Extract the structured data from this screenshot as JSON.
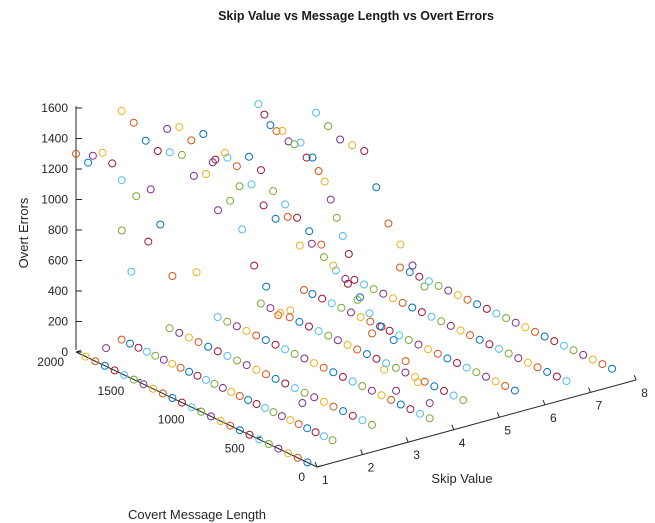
{
  "chart_data": {
    "type": "scatter3d",
    "title": "Skip Value vs Message Length vs Overt Errors",
    "xlabel": "Skip Value",
    "ylabel": "Covert Message Length",
    "zlabel": "Overt Errors",
    "xlim": [
      1,
      8
    ],
    "ylim": [
      0,
      2000
    ],
    "zlim": [
      0,
      1600
    ],
    "xticks": [
      "1",
      "2",
      "3",
      "4",
      "5",
      "6",
      "7",
      "8"
    ],
    "yticks": [
      "0",
      "500",
      "1000",
      "1500",
      "2000"
    ],
    "zticks": [
      "0",
      "200",
      "400",
      "600",
      "800",
      "1000",
      "1200",
      "1400",
      "1600"
    ],
    "grid": false,
    "marker": "open-circle",
    "colors": [
      "#0072BD",
      "#D95319",
      "#EDB120",
      "#7E2F8E",
      "#77AC30",
      "#4DBEEE",
      "#A2142F"
    ],
    "note": "estimated from the figure",
    "series": [
      {
        "skip_value": 1,
        "points": [
          [
            80,
            0
          ],
          [
            160,
            0
          ],
          [
            240,
            0
          ],
          [
            320,
            0
          ],
          [
            400,
            0
          ],
          [
            480,
            0
          ],
          [
            560,
            0
          ],
          [
            640,
            0
          ],
          [
            720,
            0
          ],
          [
            800,
            0
          ],
          [
            880,
            0
          ],
          [
            960,
            0
          ],
          [
            1040,
            0
          ],
          [
            1120,
            0
          ],
          [
            1200,
            0
          ],
          [
            1280,
            0
          ],
          [
            1360,
            0
          ],
          [
            1440,
            0
          ],
          [
            1520,
            0
          ],
          [
            1600,
            0
          ],
          [
            1680,
            0
          ],
          [
            1760,
            0
          ],
          [
            1840,
            0
          ],
          [
            1920,
            0
          ],
          [
            1380,
            1300
          ],
          [
            1500,
            1210
          ],
          [
            1620,
            1270
          ],
          [
            1700,
            1350
          ],
          [
            1900,
            1280
          ],
          [
            2000,
            1300
          ],
          [
            1780,
            1390
          ],
          [
            1860,
            1340
          ],
          [
            1620,
            940
          ],
          [
            1540,
            700
          ],
          [
            1400,
            950
          ],
          [
            1300,
            1100
          ],
          [
            1200,
            800
          ],
          [
            1000,
            900
          ],
          [
            1750,
            120
          ]
        ]
      },
      {
        "skip_value": 2,
        "points": [
          [
            250,
            0
          ],
          [
            320,
            0
          ],
          [
            390,
            0
          ],
          [
            460,
            0
          ],
          [
            530,
            0
          ],
          [
            600,
            0
          ],
          [
            670,
            0
          ],
          [
            740,
            0
          ],
          [
            810,
            0
          ],
          [
            880,
            0
          ],
          [
            950,
            0
          ],
          [
            1020,
            0
          ],
          [
            1090,
            0
          ],
          [
            1160,
            0
          ],
          [
            1230,
            0
          ],
          [
            1300,
            0
          ],
          [
            1370,
            0
          ],
          [
            1440,
            0
          ],
          [
            1510,
            0
          ],
          [
            1580,
            0
          ],
          [
            1650,
            0
          ],
          [
            1720,
            0
          ],
          [
            1790,
            0
          ],
          [
            1860,
            0
          ],
          [
            1930,
            0
          ],
          [
            2000,
            0
          ],
          [
            1300,
            1350
          ],
          [
            1400,
            1300
          ],
          [
            1500,
            1400
          ],
          [
            1600,
            1380
          ],
          [
            1700,
            1350
          ],
          [
            1800,
            1380
          ],
          [
            1900,
            1460
          ],
          [
            2000,
            1500
          ],
          [
            1200,
            1150
          ],
          [
            1100,
            1250
          ],
          [
            1000,
            1100
          ],
          [
            900,
            900
          ],
          [
            800,
            800
          ],
          [
            700,
            650
          ],
          [
            600,
            720
          ],
          [
            500,
            150
          ]
        ]
      },
      {
        "skip_value": 3,
        "points": [
          [
            300,
            0
          ],
          [
            380,
            0
          ],
          [
            460,
            0
          ],
          [
            540,
            0
          ],
          [
            620,
            0
          ],
          [
            700,
            0
          ],
          [
            780,
            0
          ],
          [
            860,
            0
          ],
          [
            940,
            0
          ],
          [
            1020,
            0
          ],
          [
            1100,
            0
          ],
          [
            1180,
            0
          ],
          [
            1260,
            0
          ],
          [
            1340,
            0
          ],
          [
            1420,
            0
          ],
          [
            1500,
            0
          ],
          [
            1580,
            0
          ],
          [
            1660,
            0
          ],
          [
            1740,
            0
          ],
          [
            1820,
            0
          ],
          [
            1900,
            0
          ],
          [
            1980,
            0
          ],
          [
            1500,
            1300
          ],
          [
            1600,
            1250
          ],
          [
            1700,
            1380
          ],
          [
            1800,
            1300
          ],
          [
            1900,
            1350
          ],
          [
            2000,
            1300
          ],
          [
            1400,
            1150
          ],
          [
            1300,
            1200
          ],
          [
            1200,
            1100
          ],
          [
            1100,
            1050
          ],
          [
            1000,
            1100
          ],
          [
            900,
            950
          ],
          [
            800,
            1000
          ],
          [
            700,
            950
          ],
          [
            600,
            900
          ],
          [
            500,
            850
          ],
          [
            400,
            800
          ],
          [
            300,
            600
          ],
          [
            200,
            400
          ],
          [
            100,
            300
          ]
        ]
      },
      {
        "skip_value": 4,
        "points": [
          [
            200,
            0
          ],
          [
            280,
            0
          ],
          [
            360,
            0
          ],
          [
            440,
            0
          ],
          [
            520,
            0
          ],
          [
            600,
            0
          ],
          [
            680,
            0
          ],
          [
            760,
            0
          ],
          [
            840,
            0
          ],
          [
            920,
            0
          ],
          [
            1000,
            0
          ],
          [
            1080,
            0
          ],
          [
            1160,
            0
          ],
          [
            1240,
            0
          ],
          [
            1320,
            0
          ],
          [
            1400,
            0
          ],
          [
            1480,
            0
          ],
          [
            1560,
            0
          ],
          [
            1640,
            0
          ],
          [
            1720,
            0
          ],
          [
            1800,
            0
          ],
          [
            1880,
            0
          ],
          [
            1960,
            0
          ],
          [
            1600,
            1100
          ],
          [
            1700,
            1150
          ],
          [
            1800,
            1050
          ],
          [
            1900,
            1100
          ],
          [
            2000,
            1000
          ],
          [
            1500,
            1000
          ],
          [
            1400,
            950
          ],
          [
            1300,
            900
          ],
          [
            1200,
            850
          ],
          [
            1100,
            800
          ],
          [
            1000,
            700
          ],
          [
            900,
            650
          ],
          [
            800,
            550
          ],
          [
            700,
            500
          ],
          [
            600,
            450
          ],
          [
            500,
            400
          ],
          [
            400,
            300
          ],
          [
            300,
            200
          ],
          [
            200,
            100
          ]
        ]
      },
      {
        "skip_value": 5,
        "points": [
          [
            300,
            0
          ],
          [
            380,
            0
          ],
          [
            460,
            0
          ],
          [
            540,
            0
          ],
          [
            620,
            0
          ],
          [
            700,
            0
          ],
          [
            780,
            0
          ],
          [
            860,
            0
          ],
          [
            940,
            0
          ],
          [
            1020,
            0
          ],
          [
            1100,
            0
          ],
          [
            1180,
            0
          ],
          [
            1260,
            0
          ],
          [
            1340,
            0
          ],
          [
            1420,
            0
          ],
          [
            1500,
            0
          ],
          [
            1580,
            0
          ],
          [
            1660,
            0
          ],
          [
            1740,
            0
          ],
          [
            1820,
            0
          ],
          [
            1900,
            0
          ],
          [
            1980,
            0
          ],
          [
            2000,
            1300
          ],
          [
            1950,
            1250
          ],
          [
            1900,
            1200
          ],
          [
            1850,
            1180
          ],
          [
            1800,
            1200
          ],
          [
            1750,
            1150
          ],
          [
            1700,
            1150
          ],
          [
            1650,
            1180
          ],
          [
            1600,
            1100
          ],
          [
            1550,
            1120
          ],
          [
            1500,
            1050
          ],
          [
            1450,
            1000
          ],
          [
            1400,
            900
          ],
          [
            1350,
            800
          ],
          [
            1300,
            700
          ],
          [
            1250,
            600
          ]
        ]
      },
      {
        "skip_value": 6,
        "points": [
          [
            250,
            0
          ],
          [
            330,
            0
          ],
          [
            410,
            0
          ],
          [
            490,
            0
          ],
          [
            570,
            0
          ],
          [
            650,
            0
          ],
          [
            730,
            0
          ],
          [
            810,
            0
          ],
          [
            890,
            0
          ],
          [
            970,
            0
          ],
          [
            1050,
            0
          ],
          [
            1130,
            0
          ],
          [
            1210,
            0
          ],
          [
            1290,
            0
          ],
          [
            1370,
            0
          ],
          [
            1450,
            0
          ],
          [
            1530,
            0
          ],
          [
            1610,
            0
          ],
          [
            1690,
            0
          ],
          [
            1770,
            0
          ],
          [
            1850,
            0
          ],
          [
            1930,
            0
          ],
          [
            2000,
            0
          ],
          [
            1600,
            1100
          ],
          [
            1700,
            1100
          ],
          [
            1800,
            1150
          ],
          [
            1900,
            1200
          ],
          [
            1500,
            1100
          ],
          [
            1400,
            900
          ],
          [
            1300,
            700
          ],
          [
            1200,
            600
          ],
          [
            1100,
            500
          ],
          [
            1000,
            400
          ]
        ]
      },
      {
        "skip_value": 7,
        "points": [
          [
            200,
            0
          ],
          [
            280,
            0
          ],
          [
            360,
            0
          ],
          [
            440,
            0
          ],
          [
            520,
            0
          ],
          [
            600,
            0
          ],
          [
            680,
            0
          ],
          [
            760,
            0
          ],
          [
            840,
            0
          ],
          [
            920,
            0
          ],
          [
            1000,
            0
          ],
          [
            1080,
            0
          ],
          [
            1160,
            0
          ],
          [
            1240,
            0
          ],
          [
            1320,
            0
          ],
          [
            1400,
            0
          ],
          [
            1480,
            0
          ],
          [
            1560,
            0
          ],
          [
            1640,
            0
          ],
          [
            1720,
            0
          ],
          [
            1800,
            0
          ],
          [
            1880,
            0
          ],
          [
            1960,
            0
          ]
        ]
      },
      {
        "skip_value": 8,
        "points": [
          [
            200,
            0
          ],
          [
            280,
            0
          ],
          [
            360,
            0
          ],
          [
            440,
            0
          ],
          [
            520,
            0
          ],
          [
            600,
            0
          ],
          [
            680,
            0
          ],
          [
            760,
            0
          ],
          [
            840,
            0
          ],
          [
            920,
            0
          ],
          [
            1000,
            0
          ],
          [
            1080,
            0
          ],
          [
            1160,
            0
          ],
          [
            1240,
            0
          ],
          [
            1320,
            0
          ],
          [
            1400,
            0
          ],
          [
            1480,
            0
          ],
          [
            1560,
            0
          ],
          [
            1640,
            0
          ],
          [
            1720,
            0
          ],
          [
            1800,
            0
          ],
          [
            1880,
            0
          ],
          [
            1960,
            0
          ]
        ]
      }
    ]
  }
}
